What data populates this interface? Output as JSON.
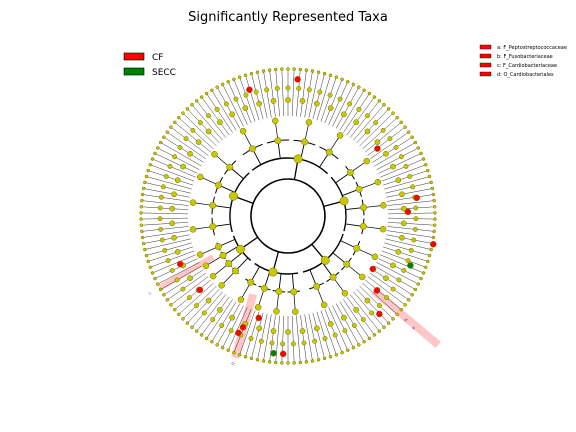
{
  "title": "Significantly Represented Taxa",
  "colors": {
    "cf": "#ff0000",
    "secc": "#008000",
    "node": "#c8c800",
    "node_edge": "#6b6b00",
    "highlight": "#ff8080",
    "branch": "#000000"
  },
  "legend": {
    "groups": [
      {
        "label": "CF",
        "color": "#ff0000"
      },
      {
        "label": "SECC",
        "color": "#008000"
      }
    ],
    "clades": [
      {
        "label": "a: F_Peptostreptococcaceae"
      },
      {
        "label": "b: F_Fusobacteriaceae"
      },
      {
        "label": "c: F_Cardiobacteriaceae"
      },
      {
        "label": "d: O_Cardiobacteriales"
      }
    ]
  },
  "highlight_letters": [
    "a",
    "b",
    "c",
    "d"
  ]
}
